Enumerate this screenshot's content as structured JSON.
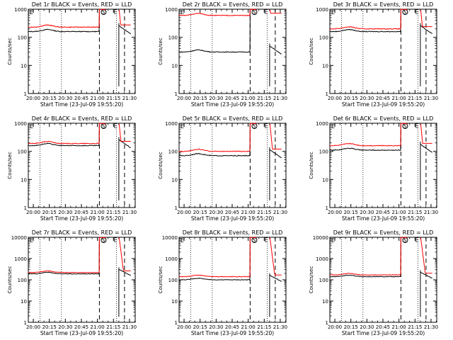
{
  "chart_data": [
    {
      "type": "line",
      "title": "Det 1r BLACK = Events, RED = LLD",
      "xlabel": "Start Time (23-Jul-09 19:55:20)",
      "ylabel": "Counts/sec",
      "xticks": [
        "20:00",
        "20:15",
        "20:30",
        "20:45",
        "21:00",
        "21:15",
        "21:30"
      ],
      "yticks": [
        "1",
        "10",
        "100",
        "1000"
      ],
      "ylim": [
        1,
        1000
      ],
      "yscale": "log",
      "markers": [
        "S",
        "E"
      ],
      "series": [
        {
          "name": "Events",
          "color": "#000000",
          "base": 160,
          "spike": [
            [
              0,
              60
            ],
            [
              15,
              20
            ],
            [
              30,
              18
            ],
            [
              45,
              22
            ],
            [
              60,
              25
            ]
          ]
        },
        {
          "name": "LLD",
          "color": "#ff0000",
          "base": 230
        }
      ]
    },
    {
      "type": "line",
      "title": "Det 2r BLACK = Events, RED = LLD",
      "xlabel": "Start Time (23-Jul-09 19:55:20)",
      "ylabel": "Counts/sec",
      "xticks": [
        "20:00",
        "20:15",
        "20:30",
        "20:45",
        "21:00",
        "21:15",
        "21:30"
      ],
      "yticks": [
        "1",
        "10",
        "100",
        "1000"
      ],
      "ylim": [
        1,
        1000
      ],
      "yscale": "log",
      "markers": [
        "S",
        "E"
      ],
      "series": [
        {
          "name": "Events",
          "color": "#000000",
          "base": 30
        },
        {
          "name": "LLD",
          "color": "#ff0000",
          "base": 600
        }
      ]
    },
    {
      "type": "line",
      "title": "Det 3r BLACK = Events, RED = LLD",
      "xlabel": "Start Time (23-Jul-09 19:55:20)",
      "ylabel": "Counts/sec",
      "xticks": [
        "20:00",
        "20:15",
        "20:30",
        "20:45",
        "21:00",
        "21:15",
        "21:30"
      ],
      "yticks": [
        "1",
        "10",
        "100",
        "1000"
      ],
      "ylim": [
        1,
        1000
      ],
      "yscale": "log",
      "markers": [
        "S",
        "E"
      ],
      "series": [
        {
          "name": "Events",
          "color": "#000000",
          "base": 160
        },
        {
          "name": "LLD",
          "color": "#ff0000",
          "base": 200
        }
      ]
    },
    {
      "type": "line",
      "title": "Det 4r BLACK = Events, RED = LLD",
      "xlabel": "Start Time (23-Jul-09 19:55:20)",
      "ylabel": "Counts/sec",
      "xticks": [
        "20:00",
        "20:15",
        "20:30",
        "20:45",
        "21:00",
        "21:15",
        "21:30"
      ],
      "yticks": [
        "1",
        "10",
        "100",
        "1000"
      ],
      "ylim": [
        1,
        1000
      ],
      "yscale": "log",
      "markers": [
        "S",
        "E"
      ],
      "series": [
        {
          "name": "Events",
          "color": "#000000",
          "base": 160
        },
        {
          "name": "LLD",
          "color": "#ff0000",
          "base": 190
        }
      ]
    },
    {
      "type": "line",
      "title": "Det 5r BLACK = Events, RED = LLD",
      "xlabel": "Start Time (23-Jul-09 19:55:20)",
      "ylabel": "Counts/sec",
      "xticks": [
        "20:00",
        "20:15",
        "20:30",
        "20:45",
        "21:00",
        "21:15",
        "21:30"
      ],
      "yticks": [
        "1",
        "10",
        "100",
        "1000"
      ],
      "ylim": [
        1,
        1000
      ],
      "yscale": "log",
      "markers": [
        "S",
        "E"
      ],
      "series": [
        {
          "name": "Events",
          "color": "#000000",
          "base": 70
        },
        {
          "name": "LLD",
          "color": "#ff0000",
          "base": 100
        }
      ]
    },
    {
      "type": "line",
      "title": "Det 6r BLACK = Events, RED = LLD",
      "xlabel": "Start Time (23-Jul-09 19:55:20)",
      "ylabel": "Counts/sec",
      "xticks": [
        "20:00",
        "20:15",
        "20:30",
        "20:45",
        "21:00",
        "21:15",
        "21:30"
      ],
      "yticks": [
        "1",
        "10",
        "100",
        "1000"
      ],
      "ylim": [
        1,
        1000
      ],
      "yscale": "log",
      "markers": [
        "S",
        "E"
      ],
      "series": [
        {
          "name": "Events",
          "color": "#000000",
          "base": 110
        },
        {
          "name": "LLD",
          "color": "#ff0000",
          "base": 160
        }
      ]
    },
    {
      "type": "line",
      "title": "Det 7r BLACK = Events, RED = LLD",
      "xlabel": "Start Time (23-Jul-09 19:55:20)",
      "ylabel": "Counts/sec",
      "xticks": [
        "20:00",
        "20:15",
        "20:30",
        "20:45",
        "21:00",
        "21:15",
        "21:30"
      ],
      "yticks": [
        "1",
        "10",
        "100",
        "1000",
        "10000"
      ],
      "ylim": [
        1,
        10000
      ],
      "yscale": "log",
      "markers": [
        "S",
        "E"
      ],
      "series": [
        {
          "name": "Events",
          "color": "#000000",
          "base": 190
        },
        {
          "name": "LLD",
          "color": "#ff0000",
          "base": 220
        }
      ]
    },
    {
      "type": "line",
      "title": "Det 8r BLACK = Events, RED = LLD",
      "xlabel": "Start Time (23-Jul-09 19:55:20)",
      "ylabel": "Counts/sec",
      "xticks": [
        "20:00",
        "20:15",
        "20:30",
        "20:45",
        "21:00",
        "21:15",
        "21:30"
      ],
      "yticks": [
        "1",
        "10",
        "100",
        "1000",
        "10000"
      ],
      "ylim": [
        1,
        10000
      ],
      "yscale": "log",
      "markers": [
        "S",
        "E"
      ],
      "series": [
        {
          "name": "Events",
          "color": "#000000",
          "base": 100
        },
        {
          "name": "LLD",
          "color": "#ff0000",
          "base": 140
        }
      ]
    },
    {
      "type": "line",
      "title": "Det 9r BLACK = Events, RED = LLD",
      "xlabel": "Start Time (23-Jul-09 19:55:20)",
      "ylabel": "Counts/sec",
      "xticks": [
        "20:00",
        "20:15",
        "20:30",
        "20:45",
        "21:00",
        "21:15",
        "21:30"
      ],
      "yticks": [
        "1",
        "10",
        "100",
        "1000",
        "10000"
      ],
      "ylim": [
        1,
        10000
      ],
      "yscale": "log",
      "markers": [
        "S",
        "E"
      ],
      "series": [
        {
          "name": "Events",
          "color": "#000000",
          "base": 140
        },
        {
          "name": "LLD",
          "color": "#ff0000",
          "base": 170
        }
      ]
    }
  ]
}
